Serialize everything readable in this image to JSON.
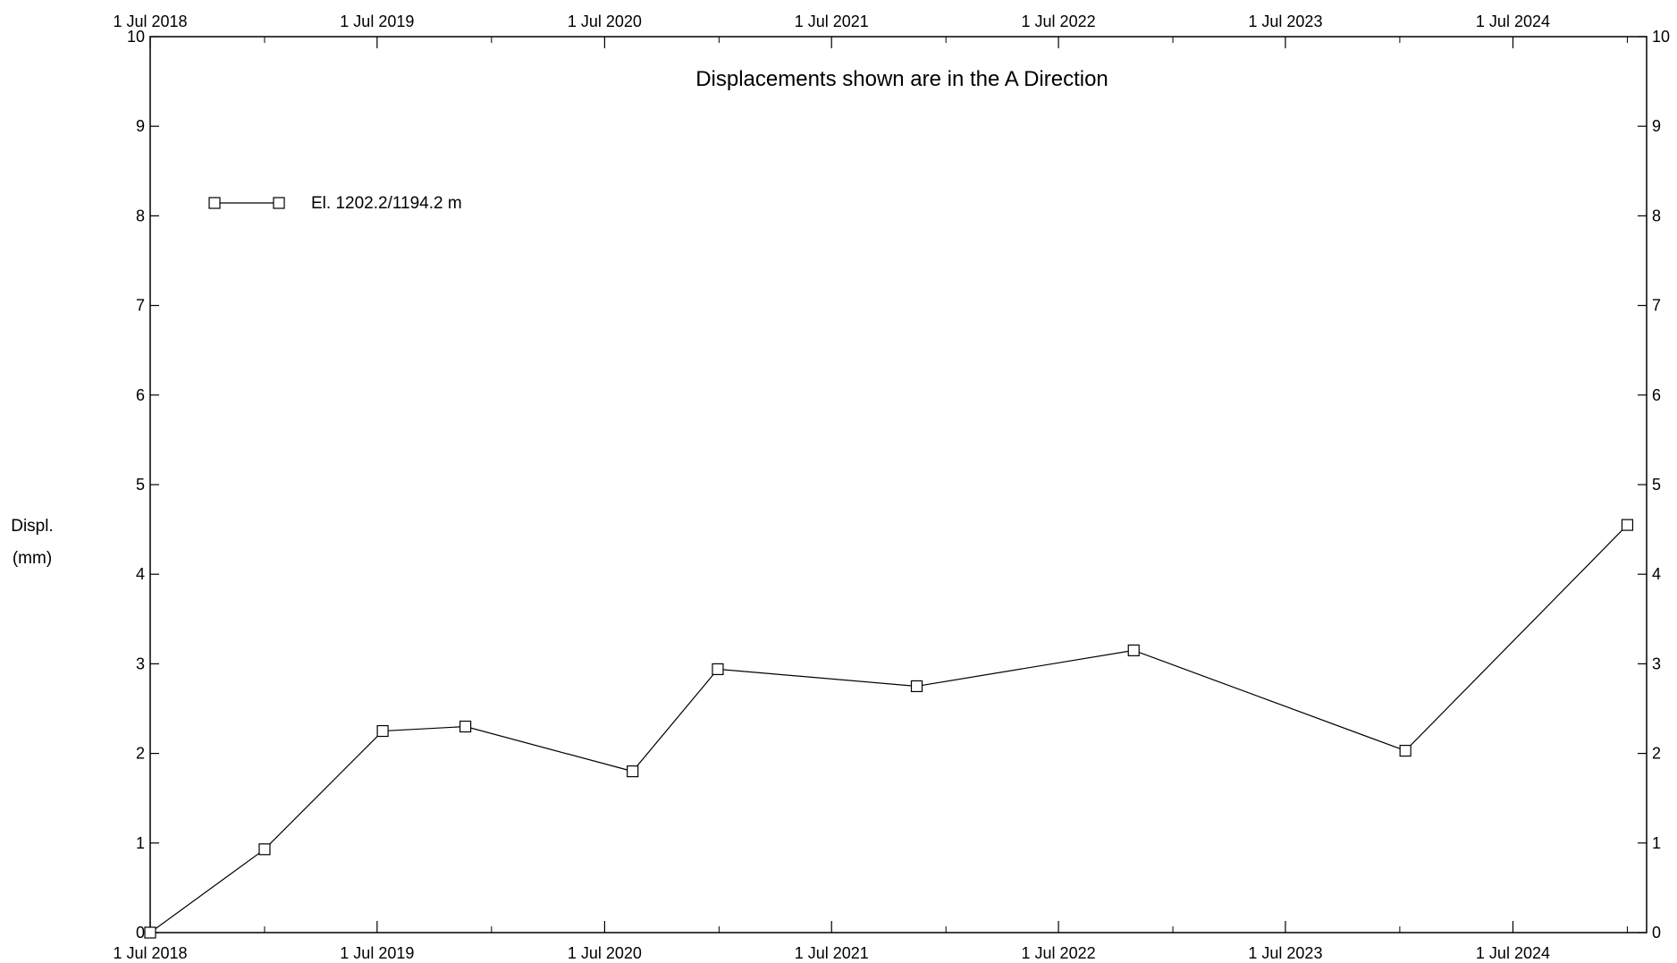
{
  "chart_data": {
    "type": "line",
    "title": "Displacements shown are in the  A Direction",
    "ylabel_line1": "Displ.",
    "ylabel_line2": "(mm)",
    "xlim": [
      "2018-07-01",
      "2025-02-01"
    ],
    "ylim": [
      0,
      10
    ],
    "x_ticks": [
      "2018-07-01",
      "2019-07-01",
      "2020-07-01",
      "2021-07-01",
      "2022-07-01",
      "2023-07-01",
      "2024-07-01"
    ],
    "x_tick_labels": [
      "1 Jul 2018",
      "1 Jul 2019",
      "1 Jul 2020",
      "1 Jul 2021",
      "1 Jul 2022",
      "1 Jul 2023",
      "1 Jul 2024"
    ],
    "y_ticks": [
      0,
      1,
      2,
      3,
      4,
      5,
      6,
      7,
      8,
      9,
      10
    ],
    "y_tick_labels": [
      "0",
      "1",
      "2",
      "3",
      "4",
      "5",
      "6",
      "7",
      "8",
      "9",
      "10"
    ],
    "grid": false,
    "legend_position": "top-left",
    "series": [
      {
        "name": "El. 1202.2/1194.2 m",
        "marker": "square",
        "color": "#000000",
        "points": [
          {
            "x": "2018-07-01",
            "y": 0.0
          },
          {
            "x": "2019-01-01",
            "y": 0.93
          },
          {
            "x": "2019-07-10",
            "y": 2.25
          },
          {
            "x": "2019-11-20",
            "y": 2.3
          },
          {
            "x": "2020-08-15",
            "y": 1.8
          },
          {
            "x": "2020-12-30",
            "y": 2.94
          },
          {
            "x": "2021-11-15",
            "y": 2.75
          },
          {
            "x": "2022-10-30",
            "y": 3.15
          },
          {
            "x": "2024-01-10",
            "y": 2.03
          },
          {
            "x": "2025-01-01",
            "y": 4.55
          }
        ]
      }
    ]
  }
}
